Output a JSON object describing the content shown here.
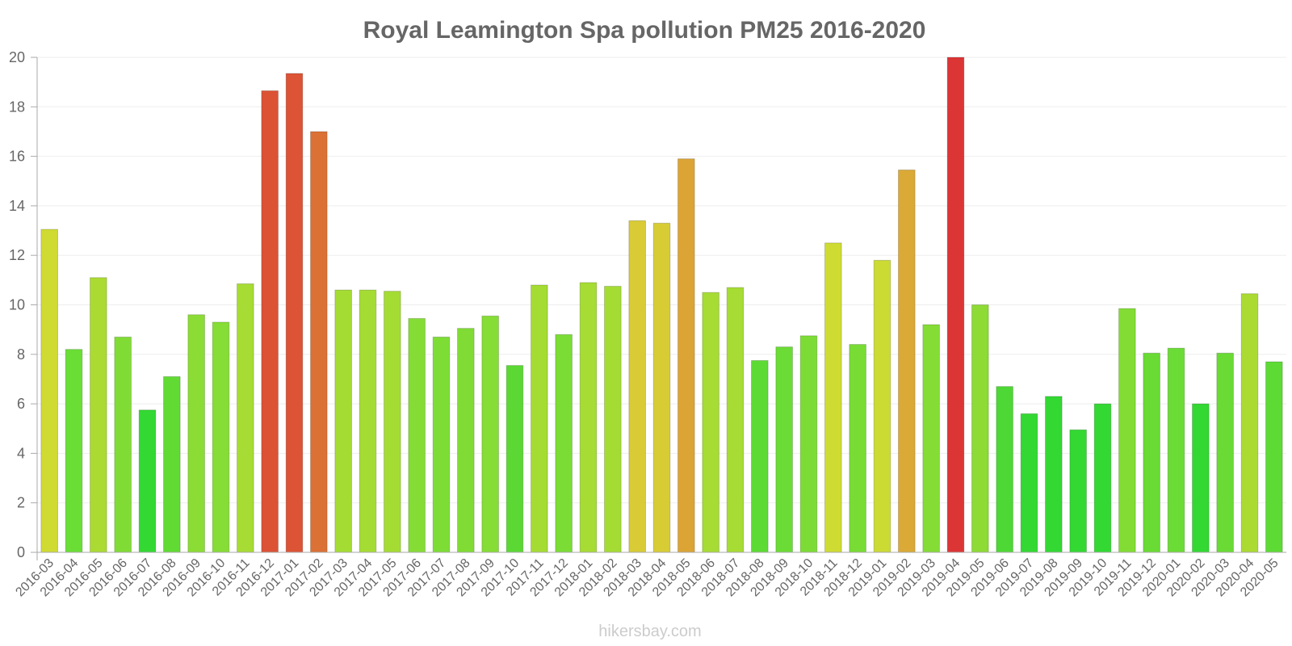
{
  "chart_data": {
    "type": "bar",
    "title": "Royal Leamington Spa pollution PM25 2016-2020",
    "xlabel": "",
    "ylabel": "",
    "ylim": [
      0,
      20
    ],
    "yticks": [
      0,
      2,
      4,
      6,
      8,
      10,
      12,
      14,
      16,
      18,
      20
    ],
    "categories": [
      "2016-03",
      "2016-04",
      "2016-05",
      "2016-06",
      "2016-07",
      "2016-08",
      "2016-09",
      "2016-10",
      "2016-11",
      "2016-12",
      "2017-01",
      "2017-02",
      "2017-03",
      "2017-04",
      "2017-05",
      "2017-06",
      "2017-07",
      "2017-08",
      "2017-09",
      "2017-10",
      "2017-11",
      "2017-12",
      "2018-01",
      "2018-02",
      "2018-03",
      "2018-04",
      "2018-05",
      "2018-06",
      "2018-07",
      "2018-08",
      "2018-09",
      "2018-10",
      "2018-11",
      "2018-12",
      "2019-01",
      "2019-02",
      "2019-03",
      "2019-04",
      "2019-05",
      "2019-06",
      "2019-07",
      "2019-08",
      "2019-09",
      "2019-10",
      "2019-11",
      "2019-12",
      "2020-01",
      "2020-02",
      "2020-03",
      "2020-04",
      "2020-05"
    ],
    "values": [
      13.05,
      8.2,
      11.1,
      8.7,
      5.75,
      7.1,
      9.6,
      9.3,
      10.85,
      18.65,
      19.35,
      17.0,
      10.6,
      10.6,
      10.55,
      9.45,
      8.7,
      9.05,
      9.55,
      7.55,
      10.8,
      8.8,
      10.9,
      10.75,
      13.4,
      13.3,
      15.9,
      10.5,
      10.7,
      7.75,
      8.3,
      8.75,
      12.5,
      8.4,
      11.8,
      15.45,
      9.2,
      20.0,
      10.0,
      6.7,
      5.6,
      6.3,
      4.95,
      6.0,
      9.85,
      8.05,
      8.25,
      6.0,
      8.05,
      10.45,
      7.7
    ],
    "colors": [
      "#cfdb32",
      "#6ade35",
      "#abdb32",
      "#80dc35",
      "#33d833",
      "#61db34",
      "#8bdc34",
      "#86dd35",
      "#a6dc33",
      "#dc5235",
      "#dc5335",
      "#db7135",
      "#a5dc33",
      "#a5dc33",
      "#a5dc33",
      "#85dc35",
      "#7ddd35",
      "#80dc35",
      "#86dd35",
      "#5bd834",
      "#a5dc33",
      "#7bdc35",
      "#a6dc33",
      "#a4dc33",
      "#d8cb35",
      "#d8cc35",
      "#dba435",
      "#a6dc33",
      "#a6dc33",
      "#5ddb34",
      "#6bdc35",
      "#7cdc35",
      "#cedb33",
      "#78dc35",
      "#cbdb33",
      "#dba935",
      "#84dc35",
      "#dc3535",
      "#8ddb34",
      "#4ed835",
      "#33d833",
      "#33d833",
      "#33d833",
      "#33d833",
      "#83dc34",
      "#69db34",
      "#6bdc35",
      "#33d833",
      "#69db34",
      "#abdb32",
      "#5ddb34"
    ],
    "watermark": "hikersbay.com"
  }
}
